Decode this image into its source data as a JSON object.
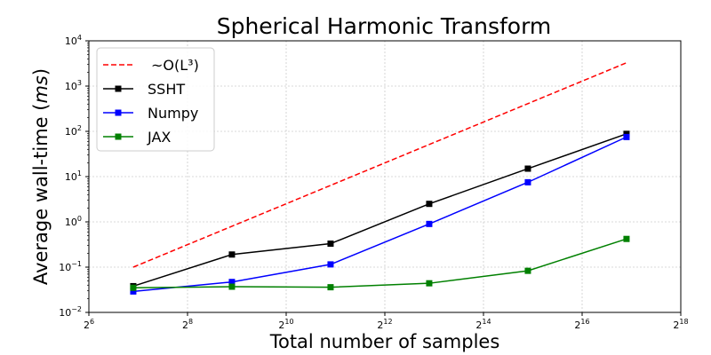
{
  "chart_data": {
    "type": "line",
    "title": "Spherical Harmonic Transform",
    "xlabel": "Total number of samples",
    "ylabel": "Average wall-time (ms)",
    "xscale": "log2",
    "yscale": "log10",
    "xlim_log2": [
      6,
      18
    ],
    "ylim_log10": [
      -2,
      4
    ],
    "x_ticks": [
      {
        "base": "2",
        "exp": "6"
      },
      {
        "base": "2",
        "exp": "8"
      },
      {
        "base": "2",
        "exp": "10"
      },
      {
        "base": "2",
        "exp": "12"
      },
      {
        "base": "2",
        "exp": "14"
      },
      {
        "base": "2",
        "exp": "16"
      },
      {
        "base": "2",
        "exp": "18"
      }
    ],
    "y_ticks": [
      {
        "base": "10",
        "exp": "−2"
      },
      {
        "base": "10",
        "exp": "−1"
      },
      {
        "base": "10",
        "exp": "0"
      },
      {
        "base": "10",
        "exp": "1"
      },
      {
        "base": "10",
        "exp": "2"
      },
      {
        "base": "10",
        "exp": "3"
      },
      {
        "base": "10",
        "exp": "4"
      }
    ],
    "grid": true,
    "legend_position": "top-left",
    "x_log2": [
      6.9,
      8.9,
      10.9,
      12.9,
      14.9,
      16.9
    ],
    "series": [
      {
        "name": "~O(L³)",
        "color": "#ff0000",
        "style": "dashed",
        "marker": "none",
        "values": [
          0.1,
          0.8,
          6.4,
          51.2,
          409.6,
          3276.8
        ]
      },
      {
        "name": "SSHT",
        "color": "#000000",
        "style": "solid",
        "marker": "square",
        "values": [
          0.038,
          0.19,
          0.33,
          2.5,
          15,
          88
        ]
      },
      {
        "name": "Numpy",
        "color": "#0000ff",
        "style": "solid",
        "marker": "square",
        "values": [
          0.029,
          0.047,
          0.115,
          0.9,
          7.5,
          75
        ]
      },
      {
        "name": "JAX",
        "color": "#008000",
        "style": "solid",
        "marker": "square",
        "values": [
          0.035,
          0.037,
          0.036,
          0.044,
          0.083,
          0.42
        ]
      }
    ]
  }
}
